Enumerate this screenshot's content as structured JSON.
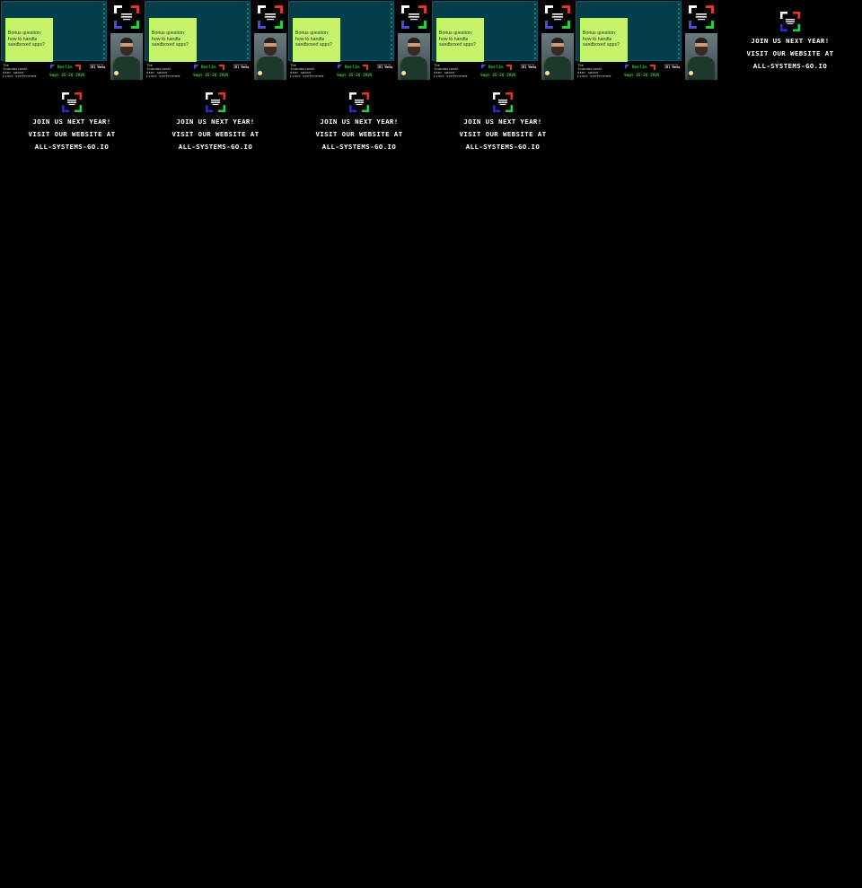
{
  "slides": [
    {
      "note": "Bonus question:\nhow to handle\nsandboxed apps?"
    },
    {
      "note": "Bonus question:\nhow to handle\nsandboxed apps?"
    },
    {
      "note": "Bonus question:\nhow to handle\nsandboxed apps?"
    },
    {
      "note": "Bonus question:\nhow to handle\nsandboxed apps?"
    },
    {
      "note": "Bonus question:\nhow to handle\nsandboxed apps?"
    }
  ],
  "footer": {
    "title": "The\nfoundational\nuser space\nLinux conference",
    "city": "Berlin",
    "dates": "Sept 25-26 2025",
    "sponsor_small": "powered by",
    "sponsor_name": "(R) Meta"
  },
  "end_cards": [
    {
      "line1": "JOIN US NEXT YEAR!",
      "line2": "VISIT OUR WEBSITE AT",
      "line3": "ALL-SYSTEMS-GO.IO"
    },
    {
      "line1": "JOIN US NEXT YEAR!",
      "line2": "VISIT OUR WEBSITE AT",
      "line3": "ALL-SYSTEMS-GO.IO"
    },
    {
      "line1": "JOIN US NEXT YEAR!",
      "line2": "VISIT OUR WEBSITE AT",
      "line3": "ALL-SYSTEMS-GO.IO"
    },
    {
      "line1": "JOIN US NEXT YEAR!",
      "line2": "VISIT OUR WEBSITE AT",
      "line3": "ALL-SYSTEMS-GO.IO"
    },
    {
      "line1": "JOIN US NEXT YEAR!",
      "line2": "VISIT OUR WEBSITE AT",
      "line3": "ALL-SYSTEMS-GO.IO"
    }
  ],
  "colors": {
    "screen": "#033e4a",
    "note": "#c7f36b",
    "accent_green": "#22d04a",
    "accent_red": "#e23a2a",
    "accent_blue": "#4a4adb"
  },
  "icons": {
    "badge": "all-systems-go-logo-icon",
    "end_logo": "all-systems-go-logo-icon"
  }
}
